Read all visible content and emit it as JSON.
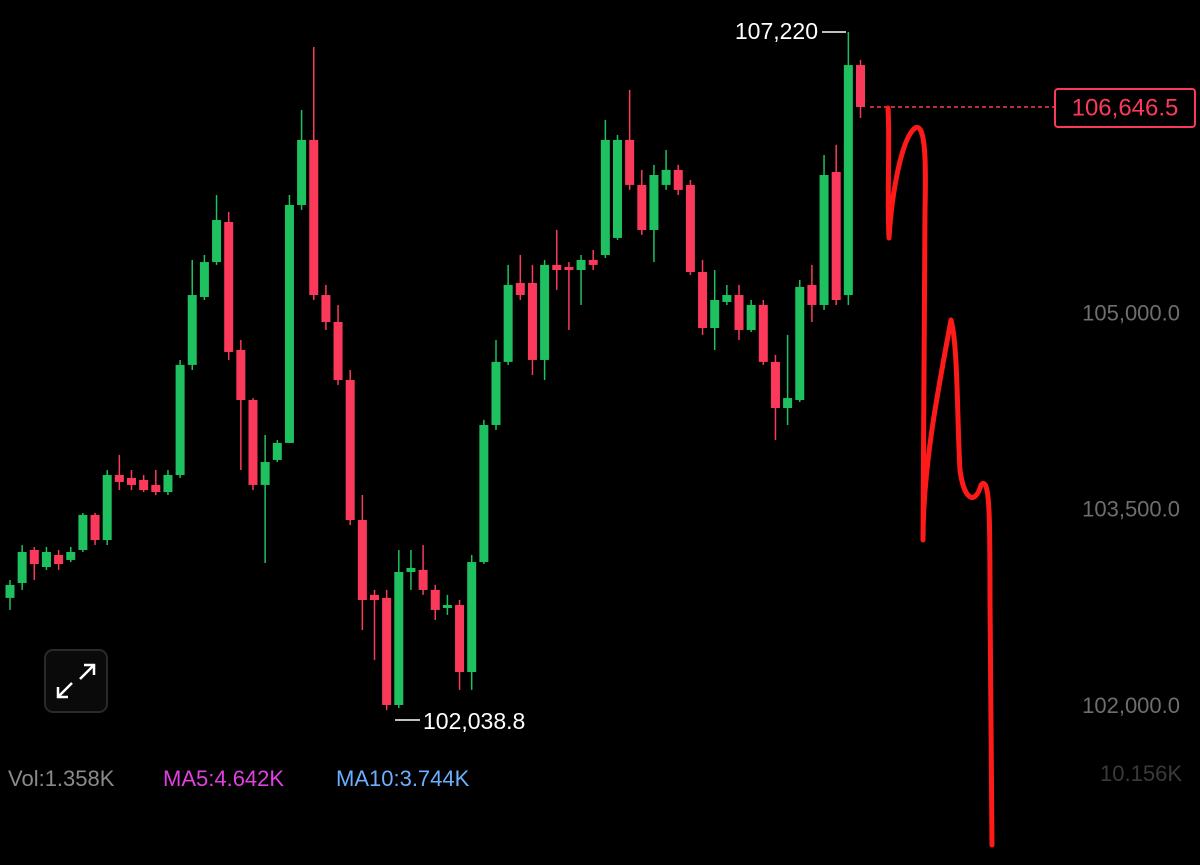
{
  "chart_data": {
    "type": "candlestick",
    "up_color": "#1fc05f",
    "down_color": "#fb3a5b",
    "ylim": [
      101734,
      107464
    ],
    "yticks": [
      {
        "value": 105000,
        "label": "105,000.0"
      },
      {
        "value": 103500,
        "label": "103,500.0"
      },
      {
        "value": 102000,
        "label": "102,000.0"
      }
    ],
    "grid": false,
    "open": [
      102896,
      103010,
      103262,
      103132,
      103224,
      103186,
      103262,
      103530,
      103338,
      103835,
      103812,
      103797,
      103759,
      103705,
      103835,
      104676,
      105195,
      105462,
      105768,
      104790,
      104408,
      103759,
      103950,
      104080,
      105898,
      106395,
      105210,
      105004,
      104561,
      103491,
      102919,
      102896,
      102078,
      103094,
      103110,
      102957,
      102819,
      102842,
      102330,
      103170,
      104217,
      104699,
      105302,
      105302,
      104714,
      105440,
      105424,
      105401,
      105478,
      105516,
      105646,
      106395,
      106051,
      105707,
      106051,
      106166,
      106051,
      105386,
      104958,
      105157,
      105210,
      104943,
      105134,
      104699,
      104347,
      104408,
      105287,
      105134,
      106150,
      105210,
      106967
    ],
    "high": [
      103033,
      103300,
      103285,
      103285,
      103262,
      103285,
      103545,
      103545,
      103873,
      103988,
      103873,
      103835,
      103873,
      103873,
      104714,
      105478,
      105516,
      105974,
      105845,
      104866,
      104423,
      104141,
      104102,
      105974,
      106624,
      107105,
      105287,
      105134,
      104637,
      103682,
      102957,
      102957,
      103262,
      103262,
      103300,
      102995,
      102919,
      102880,
      103224,
      104256,
      104866,
      105440,
      105516,
      105440,
      105478,
      105707,
      105462,
      105516,
      105554,
      106548,
      106433,
      106777,
      106166,
      106204,
      106318,
      106204,
      106089,
      105478,
      105401,
      105287,
      105287,
      105172,
      105172,
      104752,
      104905,
      105325,
      105440,
      106280,
      106357,
      107220,
      107006
    ],
    "low": [
      102804,
      102957,
      103033,
      103110,
      103110,
      103170,
      103247,
      103300,
      103300,
      103720,
      103720,
      103705,
      103682,
      103682,
      103812,
      104637,
      105172,
      105440,
      104714,
      103873,
      103720,
      103163,
      103934,
      104080,
      105860,
      105172,
      104943,
      104523,
      103453,
      102651,
      102422,
      102038.8,
      102055,
      102957,
      102919,
      102727,
      102766,
      102193,
      102193,
      103155,
      104179,
      104676,
      105172,
      104599,
      104561,
      105249,
      104943,
      105134,
      105401,
      105493,
      105631,
      106013,
      105669,
      105462,
      106013,
      105974,
      105363,
      104905,
      104790,
      105134,
      104866,
      104928,
      104676,
      104102,
      104217,
      104393,
      105004,
      105096,
      105134,
      105134,
      106563
    ],
    "close": [
      102995,
      103247,
      103155,
      103247,
      103155,
      103247,
      103530,
      103338,
      103835,
      103782,
      103759,
      103720,
      103705,
      103835,
      104676,
      105210,
      105462,
      105783,
      104775,
      104408,
      103759,
      103934,
      104080,
      105898,
      106395,
      105210,
      105004,
      104561,
      103491,
      102880,
      102880,
      102078,
      103094,
      103125,
      102957,
      102804,
      102842,
      102330,
      103170,
      104217,
      104699,
      105287,
      105210,
      104714,
      105440,
      105401,
      105401,
      105478,
      105440,
      106395,
      106395,
      106051,
      105707,
      106127,
      106166,
      106013,
      105386,
      104958,
      105172,
      105210,
      104943,
      105134,
      104699,
      104347,
      104423,
      105272,
      105134,
      106127,
      105172,
      106967,
      106646.5
    ],
    "high_label": "107,220",
    "low_label": "102,038.8",
    "last_price_label": "106,646.5",
    "volume_label": "Vol:1.358K",
    "ma5_label": "MA5:4.642K",
    "ma10_label": "MA10:3.744K",
    "volume_axis_label": "10.156K"
  }
}
